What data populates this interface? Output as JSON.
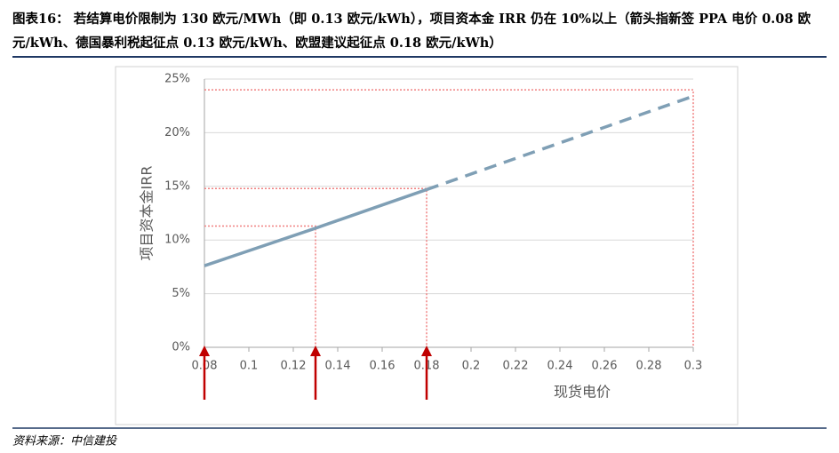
{
  "title": "图表16： 若结算电价限制为 130 欧元/MWh（即 0.13 欧元/kWh），项目资本金 IRR 仍在 10%以上（箭头指新签 PPA 电价 0.08 欧元/kWh、德国暴利税起征点 0.13 欧元/kWh、欧盟建议起征点 0.18 欧元/kWh）",
  "source": "资料来源：中信建投",
  "chart_data": {
    "type": "line",
    "x_label": "现货电价",
    "y_label": "项目资本金IRR",
    "x": [
      0.08,
      0.13,
      0.18,
      0.3
    ],
    "series": [
      {
        "color": "#7f9fb5",
        "style": "solid",
        "values": [
          7.6,
          11.1,
          14.7,
          null
        ]
      },
      {
        "color": "#7f9fb5",
        "style": "dashed",
        "values": [
          null,
          null,
          14.7,
          23.4
        ]
      }
    ],
    "reference_lines": [
      {
        "x": 0.13,
        "y": 11.3
      },
      {
        "x": 0.18,
        "y": 14.8
      },
      {
        "x": 0.3,
        "y": 24
      }
    ],
    "reference_color": "#f08080",
    "arrows_x": [
      0.08,
      0.13,
      0.18
    ],
    "arrow_color": "#c00000",
    "xlim": [
      0.08,
      0.3
    ],
    "xticks": [
      0.08,
      0.1,
      0.12,
      0.14,
      0.16,
      0.18,
      0.2,
      0.22,
      0.24,
      0.26,
      0.28,
      0.3
    ],
    "ylim": [
      0,
      25
    ],
    "yticks": [
      {
        "value": 0,
        "label": "0%"
      },
      {
        "value": 5,
        "label": "5%"
      },
      {
        "value": 10,
        "label": "10%"
      },
      {
        "value": 15,
        "label": "15%"
      },
      {
        "value": 20,
        "label": "20%"
      },
      {
        "value": 25,
        "label": "25%"
      }
    ],
    "grid": true
  }
}
